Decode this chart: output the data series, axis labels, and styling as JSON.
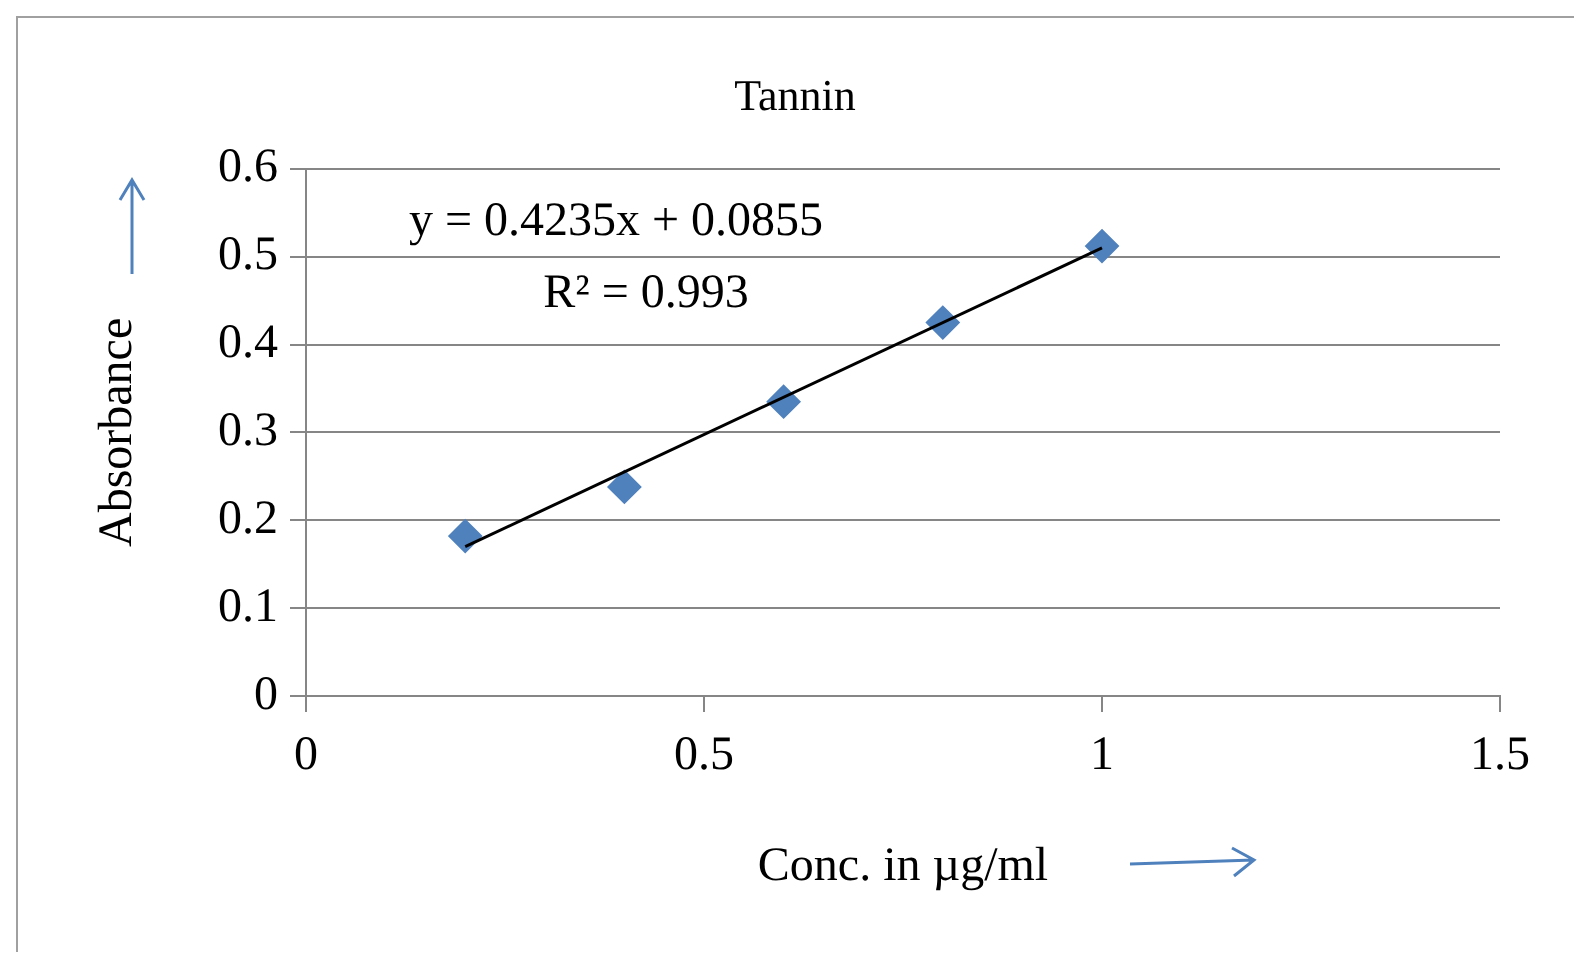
{
  "chart_data": {
    "type": "scatter",
    "title": "Tannin",
    "xlabel": "Conc. in µg/ml",
    "ylabel": "Absorbance",
    "annotations": [
      "y = 0.4235x + 0.0855",
      "R² = 0.993"
    ],
    "series": [
      {
        "type": "scatter",
        "color": "#4f81bd",
        "marker": "diamond",
        "x": [
          0.2,
          0.4,
          0.6,
          0.8,
          1.0
        ],
        "values": [
          0.182,
          0.238,
          0.335,
          0.425,
          0.512
        ]
      },
      {
        "type": "line",
        "color": "#000000",
        "marker": "none",
        "line_style": "solid",
        "x": [
          0.2,
          1.0
        ],
        "values": [
          0.17,
          0.51
        ]
      }
    ],
    "xlim": [
      0,
      1.5
    ],
    "xticks": [
      0,
      0.5,
      1,
      1.5
    ],
    "ylim": [
      0,
      0.6
    ],
    "yticks": [
      0,
      0.1,
      0.2,
      0.3,
      0.4,
      0.5,
      0.6
    ],
    "grid": "y",
    "legend": false
  }
}
